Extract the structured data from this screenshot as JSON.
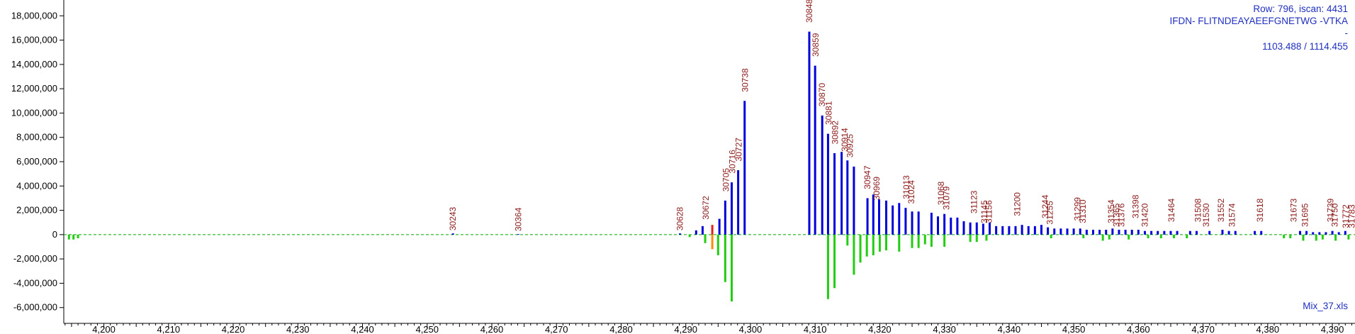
{
  "info": {
    "row_label": "Row: 796, iscan: 4431",
    "sequence": "IFDN- FLITNDEAYAEEFGNETWG -VTKA",
    "dash": "-",
    "mass": "1103.488 / 1114.455",
    "file": "Mix_37.xls"
  },
  "colors": {
    "positive_bar": "#0000d8",
    "negative_bar": "#22cc11",
    "highlight_orange": "#ff8c00",
    "highlight_red": "#e02020",
    "peak_label": "#8b1a1a",
    "baseline": "#00aa00",
    "info_text": "#1f2fbf"
  },
  "chart_data": {
    "type": "bar",
    "xlim": [
      4193.8,
      4393.5
    ],
    "ylim": [
      -7300000,
      19300000
    ],
    "grid": false,
    "x_ticks": [
      4200,
      4210,
      4220,
      4230,
      4240,
      4250,
      4260,
      4270,
      4280,
      4290,
      4300,
      4310,
      4320,
      4330,
      4340,
      4350,
      4360,
      4370,
      4380,
      4390
    ],
    "x_tick_labels": [
      "4,200",
      "4,210",
      "4,220",
      "4,230",
      "4,240",
      "4,250",
      "4,260",
      "4,270",
      "4,280",
      "4,290",
      "4,300",
      "4,310",
      "4,320",
      "4,330",
      "4,340",
      "4,350",
      "4,360",
      "4,370",
      "4,380",
      "4,390"
    ],
    "y_ticks": [
      -6000000,
      -4000000,
      -2000000,
      0,
      2000000,
      4000000,
      6000000,
      8000000,
      10000000,
      12000000,
      14000000,
      16000000,
      18000000
    ],
    "y_tick_labels": [
      "-6,000,000",
      "-4,000,000",
      "-2,000,000",
      "0",
      "2,000,000",
      "4,000,000",
      "6,000,000",
      "8,000,000",
      "10,000,000",
      "12,000,000",
      "14,000,000",
      "16,000,000",
      "18,000,000"
    ],
    "series": [
      {
        "kind": "positive",
        "color": "blue",
        "points": [
          [
            4254.0,
            100000
          ],
          [
            4264.1,
            50000
          ],
          [
            4289.1,
            100000
          ],
          [
            4291.6,
            350000
          ],
          [
            4292.6,
            700000
          ],
          [
            4295.2,
            1300000
          ],
          [
            4296.1,
            2800000
          ],
          [
            4297.1,
            4300000
          ],
          [
            4298.1,
            5300000
          ],
          [
            4299.1,
            11000000
          ],
          [
            4309.1,
            16700000
          ],
          [
            4310.0,
            13900000
          ],
          [
            4311.1,
            9800000
          ],
          [
            4312.0,
            8300000
          ],
          [
            4313.0,
            6700000
          ],
          [
            4314.1,
            6800000
          ],
          [
            4315.0,
            6100000
          ],
          [
            4316.0,
            5600000
          ],
          [
            4318.1,
            3000000
          ],
          [
            4319.0,
            3300000
          ],
          [
            4319.9,
            2900000
          ],
          [
            4321.0,
            2800000
          ],
          [
            4322.0,
            2400000
          ],
          [
            4323.0,
            2600000
          ],
          [
            4324.0,
            2200000
          ],
          [
            4325.0,
            1900000
          ],
          [
            4326.0,
            1900000
          ],
          [
            4328.0,
            1800000
          ],
          [
            4329.0,
            1500000
          ],
          [
            4330.0,
            1700000
          ],
          [
            4331.0,
            1400000
          ],
          [
            4332.0,
            1400000
          ],
          [
            4333.0,
            1100000
          ],
          [
            4334.0,
            1000000
          ],
          [
            4335.0,
            1000000
          ],
          [
            4336.0,
            900000
          ],
          [
            4337.0,
            1000000
          ],
          [
            4338.0,
            700000
          ],
          [
            4339.0,
            700000
          ],
          [
            4340.0,
            700000
          ],
          [
            4341.0,
            700000
          ],
          [
            4342.0,
            800000
          ],
          [
            4343.0,
            700000
          ],
          [
            4344.0,
            700000
          ],
          [
            4345.0,
            800000
          ],
          [
            4346.0,
            600000
          ],
          [
            4347.0,
            500000
          ],
          [
            4348.0,
            500000
          ],
          [
            4349.0,
            500000
          ],
          [
            4350.0,
            500000
          ],
          [
            4351.0,
            500000
          ],
          [
            4352.0,
            400000
          ],
          [
            4353.0,
            400000
          ],
          [
            4354.0,
            400000
          ],
          [
            4355.0,
            400000
          ],
          [
            4356.0,
            500000
          ],
          [
            4357.0,
            400000
          ],
          [
            4358.0,
            400000
          ],
          [
            4359.0,
            400000
          ],
          [
            4360.0,
            400000
          ],
          [
            4361.0,
            300000
          ],
          [
            4362.0,
            300000
          ],
          [
            4363.0,
            300000
          ],
          [
            4364.0,
            300000
          ],
          [
            4365.0,
            300000
          ],
          [
            4366.0,
            300000
          ],
          [
            4368.0,
            300000
          ],
          [
            4369.0,
            300000
          ],
          [
            4371.0,
            300000
          ],
          [
            4373.0,
            400000
          ],
          [
            4374.0,
            300000
          ],
          [
            4375.0,
            300000
          ],
          [
            4378.0,
            300000
          ],
          [
            4379.0,
            300000
          ],
          [
            4385.0,
            300000
          ],
          [
            4386.0,
            300000
          ],
          [
            4387.0,
            200000
          ],
          [
            4388.0,
            200000
          ],
          [
            4389.0,
            200000
          ],
          [
            4390.0,
            300000
          ],
          [
            4391.0,
            200000
          ],
          [
            4392.0,
            300000
          ]
        ]
      },
      {
        "kind": "negative",
        "color": "green",
        "points": [
          [
            4194.6,
            -400000
          ],
          [
            4195.3,
            -400000
          ],
          [
            4196.0,
            -300000
          ],
          [
            4290.6,
            -200000
          ],
          [
            4293.0,
            -700000
          ],
          [
            4295.0,
            -1700000
          ],
          [
            4296.1,
            -3900000
          ],
          [
            4297.1,
            -5500000
          ],
          [
            4312.0,
            -5300000
          ],
          [
            4313.0,
            -4400000
          ],
          [
            4315.0,
            -900000
          ],
          [
            4316.0,
            -3300000
          ],
          [
            4317.0,
            -2300000
          ],
          [
            4318.0,
            -1800000
          ],
          [
            4319.0,
            -1700000
          ],
          [
            4320.0,
            -1400000
          ],
          [
            4321.0,
            -1300000
          ],
          [
            4323.0,
            -1400000
          ],
          [
            4325.0,
            -1100000
          ],
          [
            4326.0,
            -1100000
          ],
          [
            4327.0,
            -800000
          ],
          [
            4328.0,
            -1000000
          ],
          [
            4330.0,
            -1000000
          ],
          [
            4334.0,
            -600000
          ],
          [
            4335.0,
            -600000
          ],
          [
            4336.5,
            -500000
          ],
          [
            4346.5,
            -300000
          ],
          [
            4351.5,
            -300000
          ],
          [
            4354.5,
            -500000
          ],
          [
            4355.5,
            -400000
          ],
          [
            4358.5,
            -400000
          ],
          [
            4361.5,
            -300000
          ],
          [
            4363.5,
            -300000
          ],
          [
            4365.5,
            -300000
          ],
          [
            4367.5,
            -300000
          ],
          [
            4382.5,
            -300000
          ],
          [
            4383.5,
            -300000
          ],
          [
            4385.5,
            -500000
          ],
          [
            4387.5,
            -500000
          ],
          [
            4388.5,
            -400000
          ],
          [
            4390.5,
            -500000
          ],
          [
            4392.5,
            -400000
          ]
        ]
      },
      {
        "kind": "highlight",
        "color": "orange",
        "points": [
          [
            4294.1,
            -1200000
          ]
        ]
      },
      {
        "kind": "highlight",
        "color": "red",
        "points": [
          [
            4294.1,
            800000
          ]
        ]
      }
    ],
    "peak_labels": [
      {
        "text": "30243",
        "x": 4254.0,
        "y": 100000
      },
      {
        "text": "30364",
        "x": 4264.1,
        "y": 50000
      },
      {
        "text": "30628",
        "x": 4289.1,
        "y": 100000
      },
      {
        "text": "30672",
        "x": 4293.1,
        "y": 1000000
      },
      {
        "text": "30705",
        "x": 4296.2,
        "y": 3300000
      },
      {
        "text": "30716",
        "x": 4297.2,
        "y": 4800000
      },
      {
        "text": "30727",
        "x": 4298.2,
        "y": 5800000
      },
      {
        "text": "30738",
        "x": 4299.2,
        "y": 11500000
      },
      {
        "text": "30848",
        "x": 4309.1,
        "y": 17200000
      },
      {
        "text": "30859",
        "x": 4310.1,
        "y": 14400000
      },
      {
        "text": "30870",
        "x": 4311.1,
        "y": 10300000
      },
      {
        "text": "30881",
        "x": 4312.1,
        "y": 8800000
      },
      {
        "text": "30892",
        "x": 4313.1,
        "y": 7200000
      },
      {
        "text": "30914",
        "x": 4314.6,
        "y": 6600000
      },
      {
        "text": "30925",
        "x": 4315.4,
        "y": 6100000
      },
      {
        "text": "30947",
        "x": 4318.1,
        "y": 3500000
      },
      {
        "text": "30969",
        "x": 4319.5,
        "y": 2600000
      },
      {
        "text": "31013",
        "x": 4324.1,
        "y": 2700000
      },
      {
        "text": "31024",
        "x": 4324.9,
        "y": 2300000
      },
      {
        "text": "31068",
        "x": 4329.5,
        "y": 2200000
      },
      {
        "text": "31079",
        "x": 4330.3,
        "y": 1800000
      },
      {
        "text": "31123",
        "x": 4334.6,
        "y": 1500000
      },
      {
        "text": "31145",
        "x": 4336.2,
        "y": 700000
      },
      {
        "text": "31156",
        "x": 4336.9,
        "y": 700000
      },
      {
        "text": "31200",
        "x": 4341.3,
        "y": 1300000
      },
      {
        "text": "31244",
        "x": 4345.6,
        "y": 1100000
      },
      {
        "text": "31255",
        "x": 4346.3,
        "y": 600000
      },
      {
        "text": "31299",
        "x": 4350.6,
        "y": 900000
      },
      {
        "text": "31310",
        "x": 4351.4,
        "y": 700000
      },
      {
        "text": "31354",
        "x": 4355.8,
        "y": 700000
      },
      {
        "text": "31365",
        "x": 4356.6,
        "y": 400000
      },
      {
        "text": "31376",
        "x": 4357.4,
        "y": 400000
      },
      {
        "text": "31398",
        "x": 4359.6,
        "y": 1100000
      },
      {
        "text": "31420",
        "x": 4361.0,
        "y": 400000
      },
      {
        "text": "31464",
        "x": 4365.1,
        "y": 800000
      },
      {
        "text": "31508",
        "x": 4369.2,
        "y": 800000
      },
      {
        "text": "31530",
        "x": 4370.5,
        "y": 400000
      },
      {
        "text": "31552",
        "x": 4372.8,
        "y": 800000
      },
      {
        "text": "31574",
        "x": 4374.5,
        "y": 400000
      },
      {
        "text": "31618",
        "x": 4378.8,
        "y": 800000
      },
      {
        "text": "31673",
        "x": 4384.0,
        "y": 800000
      },
      {
        "text": "31695",
        "x": 4385.8,
        "y": 400000
      },
      {
        "text": "31739",
        "x": 4389.7,
        "y": 800000
      },
      {
        "text": "31750",
        "x": 4390.4,
        "y": 400000
      },
      {
        "text": "31772",
        "x": 4392.1,
        "y": 300000
      },
      {
        "text": "31783",
        "x": 4393.0,
        "y": 300000
      }
    ]
  }
}
